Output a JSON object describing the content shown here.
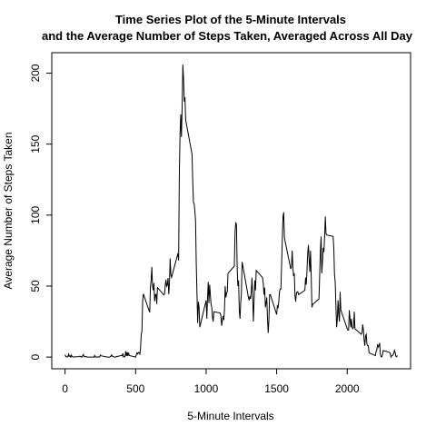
{
  "chart_data": {
    "type": "line",
    "title": "Time Series Plot of the 5-Minute Intervals",
    "subtitle": "and the Average Number of Steps Taken, Averaged Across All Day",
    "xlabel": "5-Minute Intervals",
    "ylabel": "Average Number of Steps Taken",
    "color": "#000000",
    "xlim": [
      -94.2,
      2449.2
    ],
    "ylim": [
      -8.25,
      214.42
    ],
    "xticks": [
      0,
      500,
      1000,
      1500,
      2000
    ],
    "yticks": [
      0,
      50,
      100,
      150,
      200
    ],
    "x": [
      0,
      5,
      10,
      15,
      20,
      25,
      30,
      35,
      40,
      45,
      50,
      55,
      100,
      105,
      110,
      115,
      120,
      125,
      130,
      135,
      140,
      145,
      150,
      155,
      200,
      205,
      210,
      215,
      220,
      225,
      230,
      235,
      240,
      245,
      250,
      255,
      300,
      305,
      310,
      315,
      320,
      325,
      330,
      335,
      340,
      345,
      350,
      355,
      400,
      405,
      410,
      415,
      420,
      425,
      430,
      435,
      440,
      445,
      450,
      455,
      500,
      505,
      510,
      515,
      520,
      525,
      530,
      535,
      540,
      545,
      550,
      555,
      600,
      605,
      610,
      615,
      620,
      625,
      630,
      635,
      640,
      645,
      650,
      655,
      700,
      705,
      710,
      715,
      720,
      725,
      730,
      735,
      740,
      745,
      750,
      755,
      800,
      805,
      810,
      815,
      820,
      825,
      830,
      835,
      840,
      845,
      850,
      855,
      900,
      905,
      910,
      915,
      920,
      925,
      930,
      935,
      940,
      945,
      950,
      955,
      1000,
      1005,
      1010,
      1015,
      1020,
      1025,
      1030,
      1035,
      1040,
      1045,
      1050,
      1055,
      1100,
      1105,
      1110,
      1115,
      1120,
      1125,
      1130,
      1135,
      1140,
      1145,
      1150,
      1155,
      1200,
      1205,
      1210,
      1215,
      1220,
      1225,
      1230,
      1235,
      1240,
      1245,
      1250,
      1255,
      1300,
      1305,
      1310,
      1315,
      1320,
      1325,
      1330,
      1335,
      1340,
      1345,
      1350,
      1355,
      1400,
      1405,
      1410,
      1415,
      1420,
      1425,
      1430,
      1435,
      1440,
      1445,
      1450,
      1455,
      1500,
      1505,
      1510,
      1515,
      1520,
      1525,
      1530,
      1535,
      1540,
      1545,
      1550,
      1555,
      1600,
      1605,
      1610,
      1615,
      1620,
      1625,
      1630,
      1635,
      1640,
      1645,
      1650,
      1655,
      1700,
      1705,
      1710,
      1715,
      1720,
      1725,
      1730,
      1735,
      1740,
      1745,
      1750,
      1755,
      1800,
      1805,
      1810,
      1815,
      1820,
      1825,
      1830,
      1835,
      1840,
      1845,
      1850,
      1855,
      1900,
      1905,
      1910,
      1915,
      1920,
      1925,
      1930,
      1935,
      1940,
      1945,
      1950,
      1955,
      2000,
      2005,
      2010,
      2015,
      2020,
      2025,
      2030,
      2035,
      2040,
      2045,
      2050,
      2055,
      2100,
      2105,
      2110,
      2115,
      2120,
      2125,
      2130,
      2135,
      2140,
      2145,
      2150,
      2155,
      2200,
      2205,
      2210,
      2215,
      2220,
      2225,
      2230,
      2235,
      2240,
      2245,
      2250,
      2255,
      2300,
      2305,
      2310,
      2315,
      2320,
      2325,
      2330,
      2335,
      2340,
      2345,
      2350,
      2355
    ],
    "values": [
      1.7,
      0.3,
      0.1,
      0.2,
      0.1,
      2.1,
      0.5,
      0.9,
      0,
      1.5,
      0.3,
      0.1,
      0.3,
      0.7,
      0.2,
      0.3,
      0,
      1.1,
      1.8,
      0.2,
      0.2,
      0.4,
      0.3,
      0,
      0,
      0,
      1.1,
      0,
      0,
      0.1,
      0,
      0.2,
      0,
      0,
      1.5,
      0.9,
      0,
      0,
      0,
      0,
      0.2,
      0.6,
      1.6,
      0.6,
      0.5,
      0.1,
      0,
      0,
      1.2,
      0.9,
      2.6,
      0,
      0.3,
      0.4,
      4.1,
      0.7,
      3.5,
      0.8,
      3.1,
      1.1,
      0,
      1.6,
      3,
      2.2,
      3.3,
      3,
      2.1,
      6.1,
      16,
      18.3,
      39.5,
      44.5,
      31.5,
      49.3,
      53.8,
      63.5,
      50,
      47.1,
      52.2,
      39.3,
      44,
      44.2,
      37.4,
      49,
      43.8,
      44.4,
      50.5,
      54.5,
      49.9,
      51,
      55.7,
      44.3,
      52.3,
      69.5,
      57.8,
      56.2,
      73,
      68,
      129,
      157,
      171,
      155,
      177,
      206,
      196,
      180,
      183,
      167,
      143,
      124,
      109,
      108,
      103,
      96,
      66,
      45,
      24,
      39,
      35,
      21,
      40,
      27,
      42,
      53,
      38,
      51,
      44,
      37,
      35,
      28,
      25,
      32,
      31,
      29,
      22,
      26,
      29,
      26,
      33,
      50,
      42,
      45,
      46,
      59,
      64,
      88,
      95,
      93,
      63,
      50,
      54,
      33,
      27,
      38,
      45,
      67,
      42,
      40,
      43,
      41,
      46,
      56,
      43,
      25,
      40,
      54,
      47,
      61,
      56,
      52,
      44,
      49,
      35,
      38,
      42,
      27,
      17,
      26,
      44,
      44,
      30,
      36,
      35,
      39,
      46,
      48,
      48,
      65,
      83,
      99,
      102,
      84,
      62,
      64,
      75,
      63,
      57,
      59,
      43,
      39,
      45,
      46,
      46,
      44,
      47,
      56,
      51,
      61,
      73,
      79,
      69,
      60,
      75,
      57,
      35,
      37,
      41,
      58,
      75,
      85,
      59,
      68,
      77,
      74,
      85,
      99,
      87,
      86,
      85,
      77,
      58,
      53,
      36,
      21,
      27,
      40,
      30,
      25,
      46,
      33,
      20,
      19,
      19,
      33,
      27,
      21,
      27,
      21,
      20,
      21,
      32,
      20,
      16,
      17,
      23,
      19,
      12,
      8,
      15,
      16,
      9,
      8,
      8,
      3,
      1,
      4,
      5,
      9,
      7,
      8,
      10,
      2,
      0.3,
      0.1,
      1.6,
      4.6,
      3.3,
      2.8,
      0,
      0.8,
      1,
      1.6,
      2.6,
      4.7,
      3.3,
      0.6,
      0.2,
      1.1
    ]
  }
}
